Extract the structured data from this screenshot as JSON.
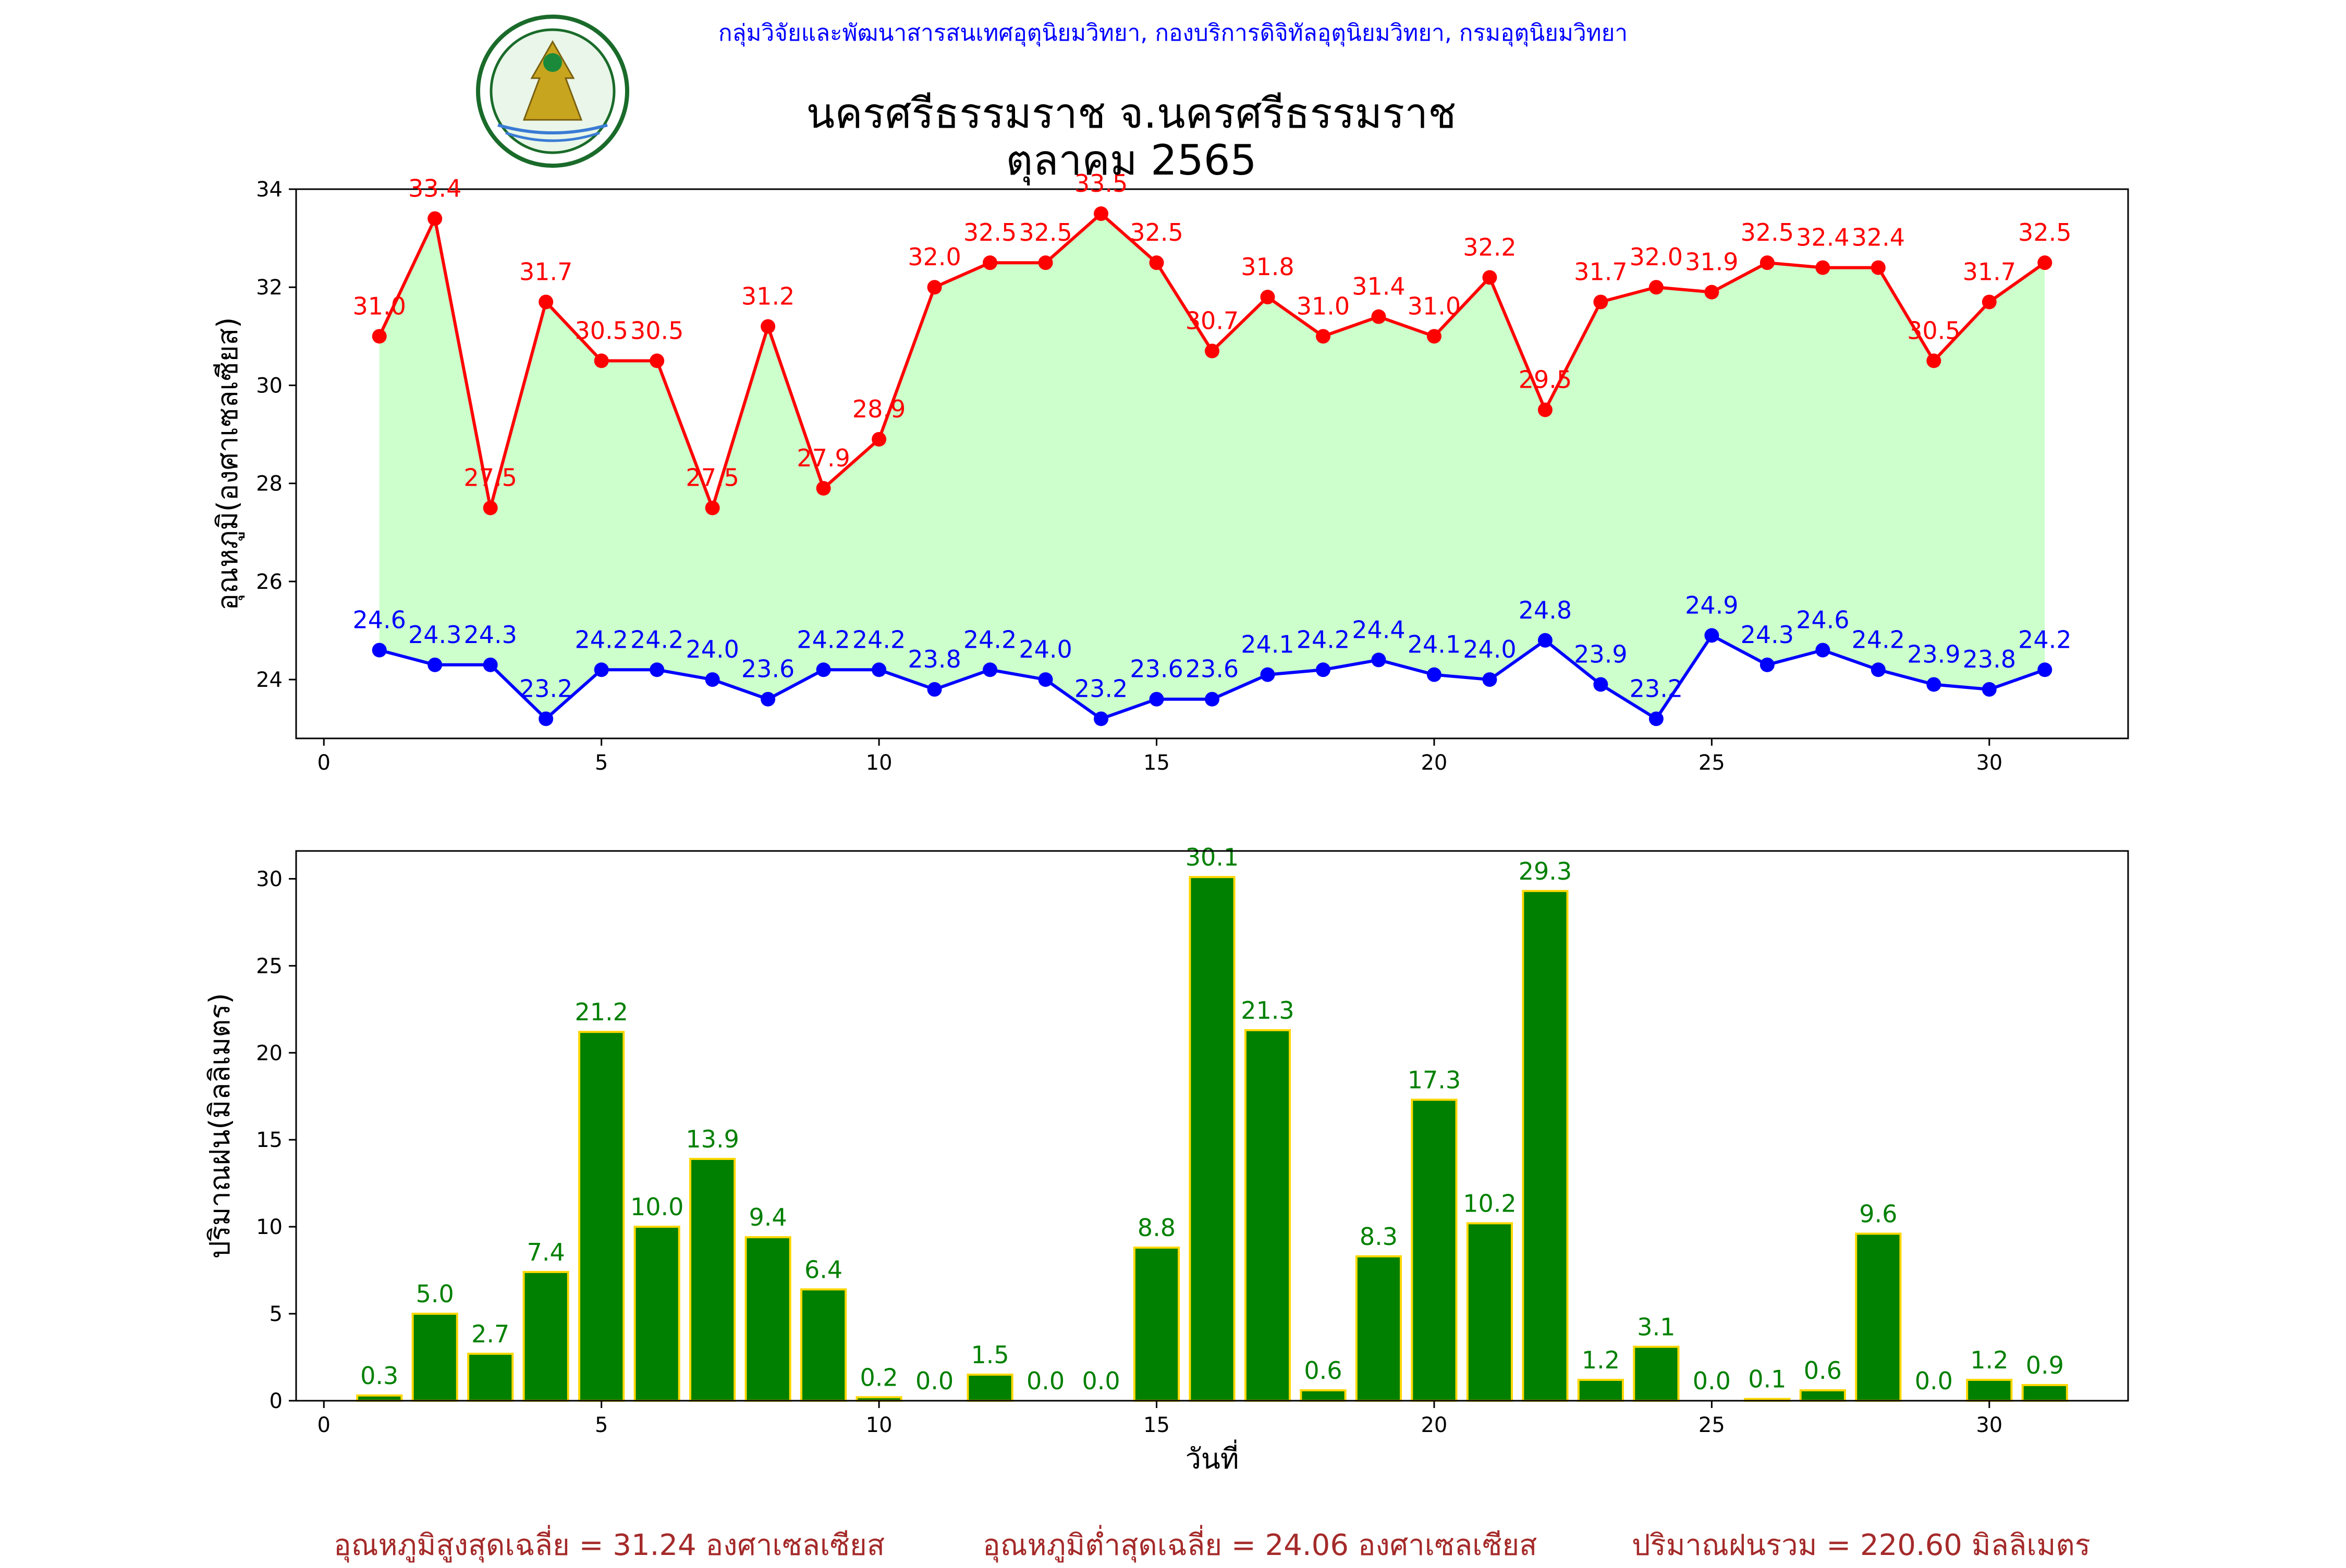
{
  "header": {
    "agency": "กลุ่มวิจัยและพัฒนาสารสนเทศอุตุนิยมวิทยา, กองบริการดิจิทัลอุตุนิยมวิทยา, กรมอุตุนิยมวิทยา",
    "logo_text_top": "กรมอุตุนิยมวิทยา",
    "logo_text_bottom": "METEOROLOGICAL DEPARTMENT"
  },
  "title": {
    "line1": "นครศรีธรรมราช จ.นครศรีธรรมราช",
    "line2": "ตุลาคม 2565"
  },
  "colors": {
    "max_temp": "#ff0000",
    "min_temp": "#0000ff",
    "fill": "#ccffcc",
    "rain_bar": "#008000",
    "rain_edge": "#ffd700",
    "rain_label": "#008000",
    "summary": "#a52a2a",
    "header": "#0000ff"
  },
  "chart_data": [
    {
      "type": "line",
      "ylabel": "อุณหภูมิ(องศาเซลเซียส)",
      "xlim": [
        -0.5,
        32.5
      ],
      "ylim": [
        22.8,
        34.0
      ],
      "xticks": [
        0,
        5,
        10,
        15,
        20,
        25,
        30
      ],
      "yticks": [
        24,
        26,
        28,
        30,
        32,
        34
      ],
      "x": [
        1,
        2,
        3,
        4,
        5,
        6,
        7,
        8,
        9,
        10,
        11,
        12,
        13,
        14,
        15,
        16,
        17,
        18,
        19,
        20,
        21,
        22,
        23,
        24,
        25,
        26,
        27,
        28,
        29,
        30,
        31
      ],
      "series": [
        {
          "values": [
            31.0,
            33.4,
            27.5,
            31.7,
            30.5,
            30.5,
            27.5,
            31.2,
            27.9,
            28.9,
            32.0,
            32.5,
            32.5,
            33.5,
            32.5,
            30.7,
            31.8,
            31.0,
            31.4,
            31.0,
            32.2,
            29.5,
            31.7,
            32.0,
            31.9,
            32.5,
            32.4,
            32.4,
            30.5,
            31.7,
            32.5
          ]
        },
        {
          "values": [
            24.6,
            24.3,
            24.3,
            23.2,
            24.2,
            24.2,
            24.0,
            23.6,
            24.2,
            24.2,
            23.8,
            24.2,
            24.0,
            23.2,
            23.6,
            23.6,
            24.1,
            24.2,
            24.4,
            24.1,
            24.0,
            24.8,
            23.9,
            23.2,
            24.9,
            24.3,
            24.6,
            24.2,
            23.9,
            23.8,
            24.2
          ]
        }
      ]
    },
    {
      "type": "bar",
      "xlabel": "วันที่",
      "ylabel": "ปริมาณฝน(มิลลิเมตร)",
      "xlim": [
        -0.5,
        32.5
      ],
      "ylim": [
        0,
        31.6
      ],
      "xticks": [
        0,
        5,
        10,
        15,
        20,
        25,
        30
      ],
      "yticks": [
        0,
        5,
        10,
        15,
        20,
        25,
        30
      ],
      "x": [
        1,
        2,
        3,
        4,
        5,
        6,
        7,
        8,
        9,
        10,
        11,
        12,
        13,
        14,
        15,
        16,
        17,
        18,
        19,
        20,
        21,
        22,
        23,
        24,
        25,
        26,
        27,
        28,
        29,
        30,
        31
      ],
      "values": [
        0.3,
        5.0,
        2.7,
        7.4,
        21.2,
        10.0,
        13.9,
        9.4,
        6.4,
        0.2,
        0.0,
        1.5,
        0.0,
        0.0,
        8.8,
        30.1,
        21.3,
        0.6,
        8.3,
        17.3,
        10.2,
        29.3,
        1.2,
        3.1,
        0.0,
        0.1,
        0.6,
        9.6,
        0.0,
        1.2,
        0.9
      ]
    }
  ],
  "summary": {
    "avg_max": "อุณหภูมิสูงสุดเฉลี่ย = 31.24 องศาเซลเซียส",
    "avg_min": "อุณหภูมิต่ำสุดเฉลี่ย = 24.06 องศาเซลเซียส",
    "total_rain": "ปริมาณฝนรวม = 220.60 มิลลิเมตร"
  }
}
